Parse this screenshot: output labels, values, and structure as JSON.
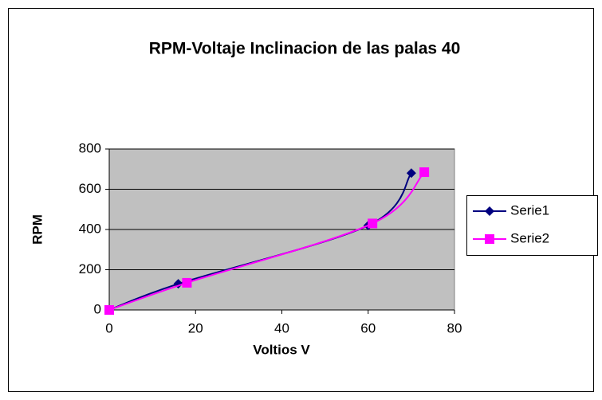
{
  "chart_data": {
    "type": "scatter",
    "title": "RPM-Voltaje  Inclinacion de las palas 40",
    "xlabel": "Voltios V",
    "ylabel": "RPM",
    "xlim": [
      0,
      80
    ],
    "xticks": [
      0,
      20,
      40,
      60,
      80
    ],
    "ylim": [
      0,
      800
    ],
    "yticks": [
      0,
      200,
      400,
      600,
      800
    ],
    "grid": true,
    "legend": "right",
    "smooth": true,
    "series": [
      {
        "name": "Serie1",
        "color": "#000080",
        "marker": "diamond",
        "x": [
          0,
          16,
          60,
          70
        ],
        "values": [
          0,
          130,
          420,
          680
        ]
      },
      {
        "name": "Serie2",
        "color": "#ff00ff",
        "marker": "square",
        "x": [
          0,
          18,
          61,
          73
        ],
        "values": [
          0,
          135,
          430,
          685
        ]
      }
    ]
  }
}
